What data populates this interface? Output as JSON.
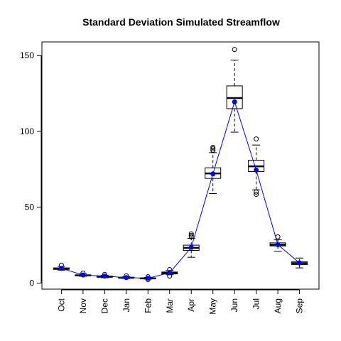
{
  "chart_data": {
    "type": "box",
    "title": "Standard Deviation Simulated Streamflow",
    "xlabel": "",
    "ylabel": "",
    "categories": [
      "Oct",
      "Nov",
      "Dec",
      "Jan",
      "Feb",
      "Mar",
      "Apr",
      "May",
      "Jun",
      "Jul",
      "Aug",
      "Sep"
    ],
    "ylim": [
      -4,
      159
    ],
    "yticks": [
      0,
      50,
      100,
      150
    ],
    "boxes": [
      {
        "whisker_low": 8.5,
        "q1": 9.0,
        "median": 9.5,
        "q3": 10.0,
        "whisker_high": 11.0,
        "outliers": [
          11.8
        ]
      },
      {
        "whisker_low": 4.5,
        "q1": 4.9,
        "median": 5.1,
        "q3": 5.4,
        "whisker_high": 6.0,
        "outliers": [
          6.6
        ]
      },
      {
        "whisker_low": 3.5,
        "q1": 3.9,
        "median": 4.2,
        "q3": 4.6,
        "whisker_high": 5.1,
        "outliers": [
          5.7
        ]
      },
      {
        "whisker_low": 3.0,
        "q1": 3.3,
        "median": 3.5,
        "q3": 3.8,
        "whisker_high": 4.3,
        "outliers": [
          4.8
        ]
      },
      {
        "whisker_low": 2.6,
        "q1": 2.8,
        "median": 3.1,
        "q3": 3.4,
        "whisker_high": 3.7,
        "outliers": [
          2.3,
          4.2
        ]
      },
      {
        "whisker_low": 5.5,
        "q1": 6.0,
        "median": 6.6,
        "q3": 7.3,
        "whisker_high": 8.3,
        "outliers": [
          4.6,
          8.9
        ]
      },
      {
        "whisker_low": 17.0,
        "q1": 21.5,
        "median": 23.2,
        "q3": 25.0,
        "whisker_high": 29.5,
        "outliers": [
          30.5,
          31.5,
          32.5
        ]
      },
      {
        "whisker_low": 59.0,
        "q1": 69.0,
        "median": 72.3,
        "q3": 76.0,
        "whisker_high": 86.0,
        "outliers": [
          87.5,
          88.5,
          89.5
        ]
      },
      {
        "whisker_low": 99.5,
        "q1": 115.0,
        "median": 122.0,
        "q3": 130.0,
        "whisker_high": 147.0,
        "outliers": [
          154.0
        ]
      },
      {
        "whisker_low": 61.5,
        "q1": 73.5,
        "median": 77.0,
        "q3": 81.0,
        "whisker_high": 91.0,
        "outliers": [
          58.5,
          60.0,
          95.0
        ]
      },
      {
        "whisker_low": 21.0,
        "q1": 24.5,
        "median": 25.3,
        "q3": 26.5,
        "whisker_high": 28.5,
        "outliers": [
          30.5
        ]
      },
      {
        "whisker_low": 10.0,
        "q1": 12.2,
        "median": 13.1,
        "q3": 14.0,
        "whisker_high": 16.5,
        "outliers": []
      }
    ],
    "mean_series": {
      "values": [
        9.7,
        5.3,
        4.6,
        3.6,
        3.2,
        6.8,
        23.5,
        72.0,
        119.5,
        74.5,
        25.3,
        13.3
      ],
      "color": "#0000ff"
    },
    "grid": false
  }
}
